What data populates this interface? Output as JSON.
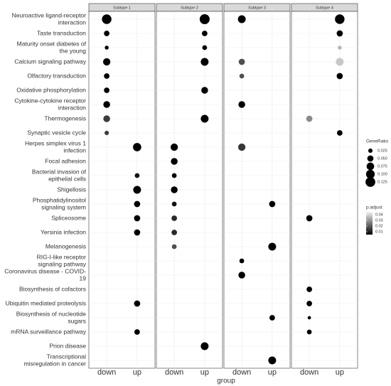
{
  "chart_data": {
    "type": "dot",
    "x_label": "group",
    "groups": [
      "down",
      "up"
    ],
    "categories": [
      "Neuroactive ligand-receptor\ninteraction",
      "Taste transduction",
      "Maturity onset diabetes of\nthe young",
      "Calcium signaling pathway",
      "Olfactory transduction",
      "Oxidative phosphorylation",
      "Cytokine-cytokine receptor\ninteraction",
      "Thermogenesis",
      "Synaptic vesicle cycle",
      "Herpes simplex virus 1\ninfection",
      "Focal adhesion",
      "Bacterial invasion of\nepithelial cells",
      "Shigellosis",
      "Phosphatidylinositol\nsignaling system",
      "Spliceosome",
      "Yersinia infection",
      "Melanogenesis",
      "RIG-I-like receptor\nsignaling pathway",
      "Coronavirus disease - COVID-19",
      "Biosynthesis of cofactors",
      "Ubiquitin mediated proteolysis",
      "Biosynthesis of nucleotide\nsugars",
      "mRNA surveillance pathway",
      "Prion disease",
      "Transcriptional\nmisregulation in cancer"
    ],
    "facets": [
      {
        "name": "Subtype  1",
        "points": [
          {
            "category": "Neuroactive ligand-receptor\ninteraction",
            "group": "down",
            "GeneRatio": 0.12,
            "p_adjust": 0.005
          },
          {
            "category": "Taste transduction",
            "group": "down",
            "GeneRatio": 0.04,
            "p_adjust": 0.005
          },
          {
            "category": "Maturity onset diabetes of\nthe young",
            "group": "down",
            "GeneRatio": 0.02,
            "p_adjust": 0.005
          },
          {
            "category": "Calcium signaling pathway",
            "group": "down",
            "GeneRatio": 0.07,
            "p_adjust": 0.005
          },
          {
            "category": "Olfactory transduction",
            "group": "down",
            "GeneRatio": 0.04,
            "p_adjust": 0.005
          },
          {
            "category": "Oxidative phosphorylation",
            "group": "down",
            "GeneRatio": 0.04,
            "p_adjust": 0.005
          },
          {
            "category": "Cytokine-cytokine receptor\ninteraction",
            "group": "down",
            "GeneRatio": 0.06,
            "p_adjust": 0.005
          },
          {
            "category": "Thermogenesis",
            "group": "down",
            "GeneRatio": 0.06,
            "p_adjust": 0.015
          },
          {
            "category": "Synaptic vesicle cycle",
            "group": "down",
            "GeneRatio": 0.025,
            "p_adjust": 0.015
          },
          {
            "category": "Herpes simplex virus 1\ninfection",
            "group": "up",
            "GeneRatio": 0.09,
            "p_adjust": 0.005
          },
          {
            "category": "Bacterial invasion of\nepithelial cells",
            "group": "up",
            "GeneRatio": 0.03,
            "p_adjust": 0.008
          },
          {
            "category": "Shigellosis",
            "group": "up",
            "GeneRatio": 0.08,
            "p_adjust": 0.005
          },
          {
            "category": "Phosphatidylinositol\nsignaling system",
            "group": "up",
            "GeneRatio": 0.05,
            "p_adjust": 0.005
          },
          {
            "category": "Spliceosome",
            "group": "up",
            "GeneRatio": 0.05,
            "p_adjust": 0.005
          },
          {
            "category": "Yersinia infection",
            "group": "up",
            "GeneRatio": 0.05,
            "p_adjust": 0.005
          },
          {
            "category": "Ubiquitin mediated proteolysis",
            "group": "up",
            "GeneRatio": 0.05,
            "p_adjust": 0.005
          },
          {
            "category": "mRNA surveillance pathway",
            "group": "up",
            "GeneRatio": 0.04,
            "p_adjust": 0.005
          }
        ]
      },
      {
        "name": "Subtype  2",
        "points": [
          {
            "category": "Neuroactive ligand-receptor\ninteraction",
            "group": "up",
            "GeneRatio": 0.13,
            "p_adjust": 0.005
          },
          {
            "category": "Taste transduction",
            "group": "up",
            "GeneRatio": 0.04,
            "p_adjust": 0.005
          },
          {
            "category": "Maturity onset diabetes of\nthe young",
            "group": "up",
            "GeneRatio": 0.03,
            "p_adjust": 0.005
          },
          {
            "category": "Calcium signaling pathway",
            "group": "up",
            "GeneRatio": 0.08,
            "p_adjust": 0.005
          },
          {
            "category": "Oxidative phosphorylation",
            "group": "up",
            "GeneRatio": 0.06,
            "p_adjust": 0.005
          },
          {
            "category": "Thermogenesis",
            "group": "up",
            "GeneRatio": 0.08,
            "p_adjust": 0.005
          },
          {
            "category": "Herpes simplex virus 1\ninfection",
            "group": "down",
            "GeneRatio": 0.07,
            "p_adjust": 0.005
          },
          {
            "category": "Focal adhesion",
            "group": "down",
            "GeneRatio": 0.06,
            "p_adjust": 0.005
          },
          {
            "category": "Bacterial invasion of\nepithelial cells",
            "group": "down",
            "GeneRatio": 0.03,
            "p_adjust": 0.005
          },
          {
            "category": "Shigellosis",
            "group": "down",
            "GeneRatio": 0.06,
            "p_adjust": 0.005
          },
          {
            "category": "Phosphatidylinositol\nsignaling system",
            "group": "down",
            "GeneRatio": 0.03,
            "p_adjust": 0.008
          },
          {
            "category": "Spliceosome",
            "group": "down",
            "GeneRatio": 0.04,
            "p_adjust": 0.012
          },
          {
            "category": "Yersinia infection",
            "group": "down",
            "GeneRatio": 0.04,
            "p_adjust": 0.012
          },
          {
            "category": "Melanogenesis",
            "group": "down",
            "GeneRatio": 0.03,
            "p_adjust": 0.018
          },
          {
            "category": "Prion disease",
            "group": "up",
            "GeneRatio": 0.08,
            "p_adjust": 0.005
          }
        ]
      },
      {
        "name": "Subtype  3",
        "points": [
          {
            "category": "Neuroactive ligand-receptor\ninteraction",
            "group": "down",
            "GeneRatio": 0.08,
            "p_adjust": 0.005
          },
          {
            "category": "Calcium signaling pathway",
            "group": "down",
            "GeneRatio": 0.05,
            "p_adjust": 0.018
          },
          {
            "category": "Olfactory transduction",
            "group": "down",
            "GeneRatio": 0.03,
            "p_adjust": 0.018
          },
          {
            "category": "Cytokine-cytokine receptor\ninteraction",
            "group": "down",
            "GeneRatio": 0.06,
            "p_adjust": 0.005
          },
          {
            "category": "Herpes simplex virus 1\ninfection",
            "group": "down",
            "GeneRatio": 0.07,
            "p_adjust": 0.014
          },
          {
            "category": "Phosphatidylinositol\nsignaling system",
            "group": "up",
            "GeneRatio": 0.05,
            "p_adjust": 0.005
          },
          {
            "category": "Melanogenesis",
            "group": "up",
            "GeneRatio": 0.08,
            "p_adjust": 0.005
          },
          {
            "category": "RIG-I-like receptor\nsignaling pathway",
            "group": "down",
            "GeneRatio": 0.03,
            "p_adjust": 0.005
          },
          {
            "category": "Coronavirus disease - COVID-19",
            "group": "down",
            "GeneRatio": 0.06,
            "p_adjust": 0.005
          },
          {
            "category": "Biosynthesis of nucleotide\nsugars",
            "group": "up",
            "GeneRatio": 0.04,
            "p_adjust": 0.005
          },
          {
            "category": "Transcriptional\nmisregulation in cancer",
            "group": "up",
            "GeneRatio": 0.08,
            "p_adjust": 0.005
          }
        ]
      },
      {
        "name": "Subtype  4",
        "points": [
          {
            "category": "Neuroactive ligand-receptor\ninteraction",
            "group": "up",
            "GeneRatio": 0.12,
            "p_adjust": 0.005
          },
          {
            "category": "Taste transduction",
            "group": "up",
            "GeneRatio": 0.05,
            "p_adjust": 0.005
          },
          {
            "category": "Maturity onset diabetes of\nthe young",
            "group": "up",
            "GeneRatio": 0.02,
            "p_adjust": 0.035
          },
          {
            "category": "Calcium signaling pathway",
            "group": "up",
            "GeneRatio": 0.08,
            "p_adjust": 0.038
          },
          {
            "category": "Olfactory transduction",
            "group": "up",
            "GeneRatio": 0.05,
            "p_adjust": 0.005
          },
          {
            "category": "Thermogenesis",
            "group": "down",
            "GeneRatio": 0.05,
            "p_adjust": 0.028
          },
          {
            "category": "Synaptic vesicle cycle",
            "group": "up",
            "GeneRatio": 0.04,
            "p_adjust": 0.005
          },
          {
            "category": "Spliceosome",
            "group": "down",
            "GeneRatio": 0.05,
            "p_adjust": 0.005
          },
          {
            "category": "Biosynthesis of cofactors",
            "group": "down",
            "GeneRatio": 0.04,
            "p_adjust": 0.005
          },
          {
            "category": "Ubiquitin mediated proteolysis",
            "group": "down",
            "GeneRatio": 0.04,
            "p_adjust": 0.005
          },
          {
            "category": "Biosynthesis of nucleotide\nsugars",
            "group": "down",
            "GeneRatio": 0.015,
            "p_adjust": 0.005
          },
          {
            "category": "mRNA surveillance pathway",
            "group": "down",
            "GeneRatio": 0.03,
            "p_adjust": 0.005
          }
        ]
      }
    ],
    "size_legend": {
      "title": "GeneRatio",
      "lim": [
        0,
        0.13
      ],
      "ticks": [
        0.025,
        {
          "value": 0.05,
          "label": "0.050"
        },
        0.075,
        {
          "value": 0.1,
          "label": "0.100"
        },
        0.125
      ]
    },
    "color_legend": {
      "title": "p.adjust",
      "lim": [
        0.005,
        0.045
      ],
      "colors": [
        "#000000",
        "#f2f2f2"
      ],
      "ticks": [
        0.01,
        0.02,
        0.03,
        0.04
      ]
    },
    "grid": true
  }
}
